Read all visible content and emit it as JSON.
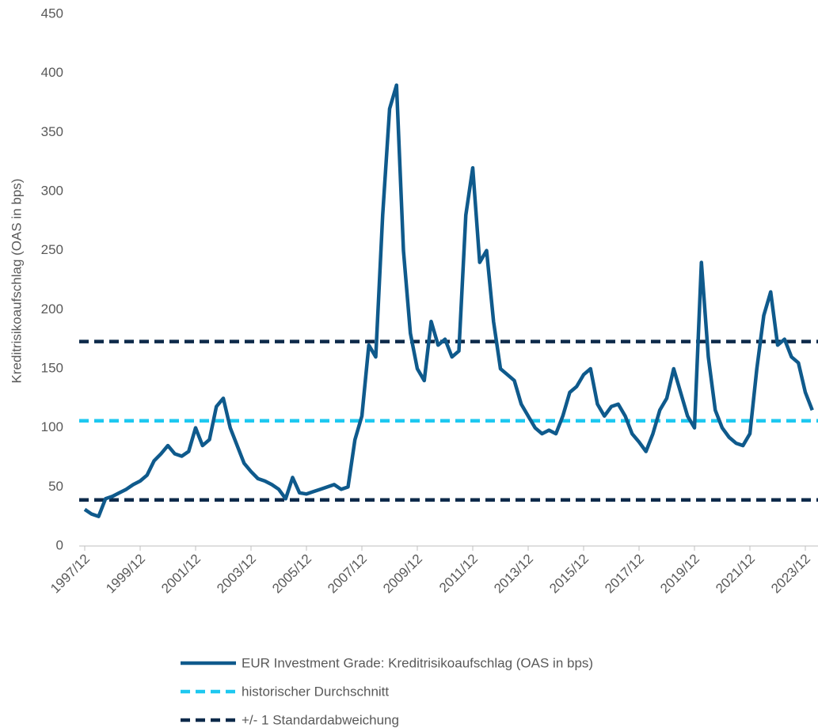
{
  "chart_data": {
    "type": "line",
    "ylabel": "Kreditrisikoaufschlag (OAS in bps)",
    "x": [
      "1997/12",
      "1998/03",
      "1998/06",
      "1998/09",
      "1998/12",
      "1999/03",
      "1999/06",
      "1999/09",
      "1999/12",
      "2000/03",
      "2000/06",
      "2000/09",
      "2000/12",
      "2001/03",
      "2001/06",
      "2001/09",
      "2001/12",
      "2002/03",
      "2002/06",
      "2002/09",
      "2002/12",
      "2003/03",
      "2003/06",
      "2003/09",
      "2003/12",
      "2004/03",
      "2004/06",
      "2004/09",
      "2004/12",
      "2005/03",
      "2005/06",
      "2005/09",
      "2005/12",
      "2006/03",
      "2006/06",
      "2006/09",
      "2006/12",
      "2007/03",
      "2007/06",
      "2007/09",
      "2007/12",
      "2008/03",
      "2008/06",
      "2008/09",
      "2008/12",
      "2009/03",
      "2009/06",
      "2009/09",
      "2009/12",
      "2010/03",
      "2010/06",
      "2010/09",
      "2010/12",
      "2011/03",
      "2011/06",
      "2011/09",
      "2011/12",
      "2012/03",
      "2012/06",
      "2012/09",
      "2012/12",
      "2013/03",
      "2013/06",
      "2013/09",
      "2013/12",
      "2014/03",
      "2014/06",
      "2014/09",
      "2014/12",
      "2015/03",
      "2015/06",
      "2015/09",
      "2015/12",
      "2016/03",
      "2016/06",
      "2016/09",
      "2016/12",
      "2017/03",
      "2017/06",
      "2017/09",
      "2017/12",
      "2018/03",
      "2018/06",
      "2018/09",
      "2018/12",
      "2019/03",
      "2019/06",
      "2019/09",
      "2019/12",
      "2020/03",
      "2020/06",
      "2020/09",
      "2020/12",
      "2021/03",
      "2021/06",
      "2021/09",
      "2021/12",
      "2022/03",
      "2022/06",
      "2022/09",
      "2022/12",
      "2023/03",
      "2023/06",
      "2023/09",
      "2023/12",
      "2024/03"
    ],
    "series": [
      {
        "name": "EUR Investment Grade: Kreditrisikoaufschlag (OAS in bps)",
        "color": "#0f5a8c",
        "values": [
          31,
          27,
          25,
          40,
          42,
          45,
          48,
          52,
          55,
          60,
          72,
          78,
          85,
          78,
          76,
          80,
          100,
          85,
          90,
          118,
          125,
          100,
          85,
          70,
          63,
          57,
          55,
          52,
          48,
          40,
          58,
          45,
          44,
          46,
          48,
          50,
          52,
          48,
          50,
          90,
          110,
          170,
          160,
          280,
          370,
          390,
          250,
          180,
          150,
          140,
          190,
          170,
          175,
          160,
          165,
          280,
          320,
          240,
          250,
          190,
          150,
          145,
          140,
          120,
          110,
          100,
          95,
          98,
          95,
          110,
          130,
          135,
          145,
          150,
          120,
          110,
          118,
          120,
          110,
          95,
          88,
          80,
          95,
          115,
          125,
          150,
          130,
          110,
          100,
          240,
          160,
          115,
          100,
          92,
          87,
          85,
          95,
          150,
          195,
          215,
          170,
          175,
          160,
          155,
          130,
          115
        ]
      }
    ],
    "reference_lines": [
      {
        "name": "historischer Durchschnitt",
        "color": "#1ec8f0",
        "values": [
          106
        ]
      },
      {
        "name": "+/- 1 Standardabweichung",
        "color": "#0d2a4a",
        "values": [
          173,
          39
        ]
      }
    ],
    "xticks": [
      "1997/12",
      "1999/12",
      "2001/12",
      "2003/12",
      "2005/12",
      "2007/12",
      "2009/12",
      "2011/12",
      "2013/12",
      "2015/12",
      "2017/12",
      "2019/12",
      "2021/12",
      "2023/12"
    ],
    "ylim": [
      0,
      450
    ],
    "yticks": [
      0,
      50,
      100,
      150,
      200,
      250,
      300,
      350,
      400,
      450
    ]
  }
}
